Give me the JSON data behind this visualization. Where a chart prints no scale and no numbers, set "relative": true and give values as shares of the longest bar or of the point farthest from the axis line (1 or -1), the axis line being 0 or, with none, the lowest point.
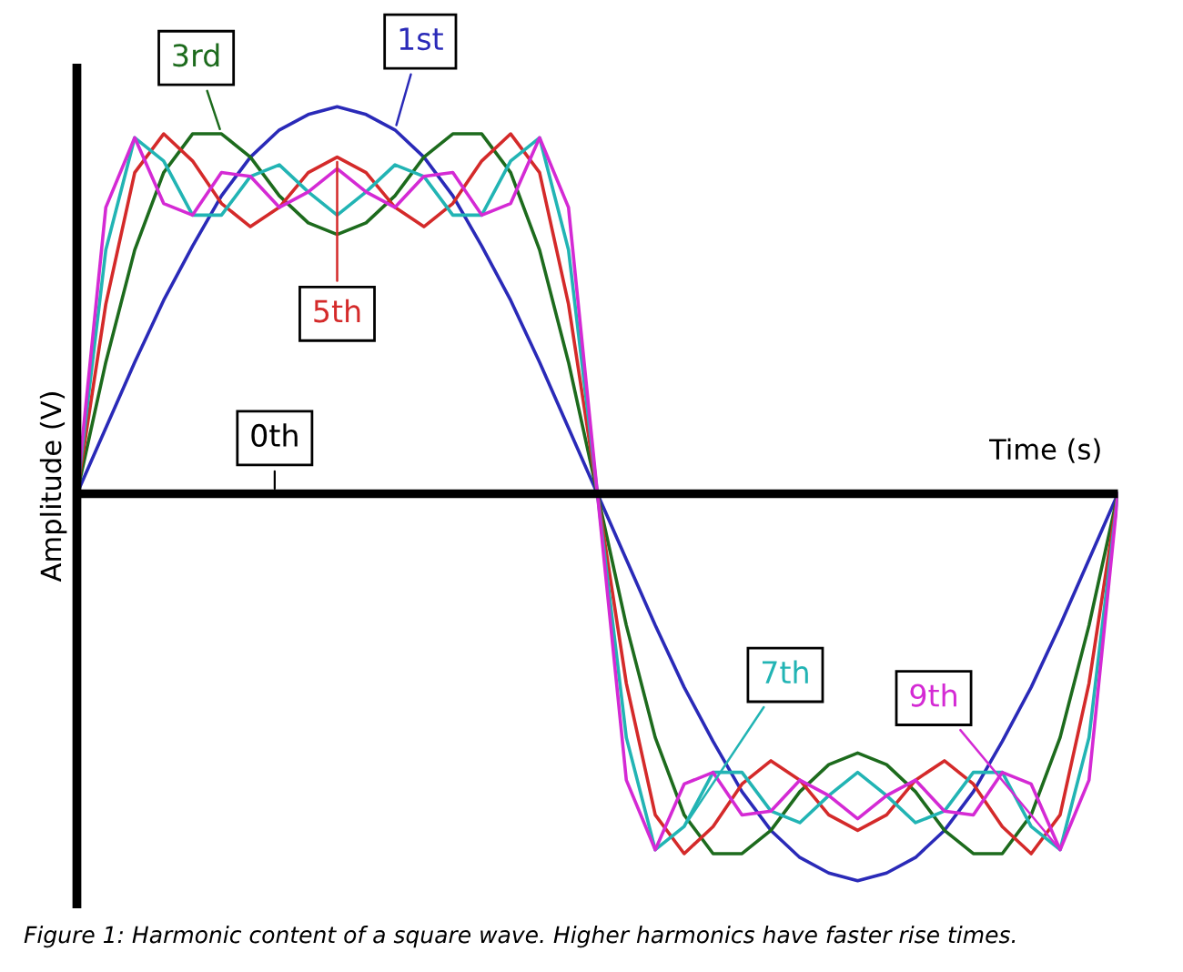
{
  "chart_data": {
    "type": "line",
    "relative": true,
    "xlabel": "Time (s)",
    "ylabel": "Amplitude (V)",
    "ref_lines": [
      {
        "axis": "y",
        "value": 0,
        "label": "0th",
        "color": "#000000"
      }
    ],
    "marker": "none",
    "line_style": "solid",
    "categories": [
      null,
      null,
      null,
      null,
      null,
      null,
      null,
      null,
      null,
      null,
      null,
      null,
      null,
      null,
      null,
      null,
      null,
      null,
      null,
      null,
      null,
      null,
      null,
      null,
      null,
      null,
      null,
      null,
      null,
      null,
      null,
      null,
      null,
      null,
      null,
      null,
      null
    ],
    "series": [
      {
        "name": "1st",
        "color": "#2a2ab8",
        "values": [
          0,
          0.17,
          0.34,
          0.5,
          0.64,
          0.77,
          0.87,
          0.94,
          0.98,
          1,
          0.98,
          0.94,
          0.87,
          0.77,
          0.64,
          0.5,
          0.34,
          0.17,
          0,
          -0.17,
          -0.34,
          -0.5,
          -0.64,
          -0.77,
          -0.87,
          -0.94,
          -0.98,
          -1,
          -0.98,
          -0.94,
          -0.87,
          -0.77,
          -0.64,
          -0.5,
          -0.34,
          -0.17,
          0
        ]
      },
      {
        "name": "3rd",
        "color": "#1d6b1d",
        "values": [
          0,
          0.34,
          0.63,
          0.83,
          0.93,
          0.93,
          0.87,
          0.77,
          0.7,
          0.67,
          0.7,
          0.77,
          0.87,
          0.93,
          0.93,
          0.83,
          0.63,
          0.34,
          0,
          -0.34,
          -0.63,
          -0.83,
          -0.93,
          -0.93,
          -0.87,
          -0.77,
          -0.7,
          -0.67,
          -0.7,
          -0.77,
          -0.87,
          -0.93,
          -0.93,
          -0.83,
          -0.63,
          -0.34,
          0
        ]
      },
      {
        "name": "5th",
        "color": "#d42a2a",
        "values": [
          0,
          0.49,
          0.83,
          0.93,
          0.86,
          0.75,
          0.69,
          0.74,
          0.83,
          0.87,
          0.83,
          0.74,
          0.69,
          0.75,
          0.86,
          0.93,
          0.83,
          0.49,
          0,
          -0.49,
          -0.83,
          -0.93,
          -0.86,
          -0.75,
          -0.69,
          -0.74,
          -0.83,
          -0.87,
          -0.83,
          -0.74,
          -0.69,
          -0.75,
          -0.86,
          -0.93,
          -0.83,
          -0.49,
          0
        ]
      },
      {
        "name": "7th",
        "color": "#22b4b4",
        "values": [
          0,
          0.63,
          0.92,
          0.86,
          0.72,
          0.72,
          0.82,
          0.85,
          0.78,
          0.72,
          0.78,
          0.85,
          0.82,
          0.72,
          0.72,
          0.86,
          0.92,
          0.63,
          0,
          -0.63,
          -0.92,
          -0.86,
          -0.72,
          -0.72,
          -0.82,
          -0.85,
          -0.78,
          -0.72,
          -0.78,
          -0.85,
          -0.82,
          -0.72,
          -0.72,
          -0.86,
          -0.92,
          -0.63,
          0
        ]
      },
      {
        "name": "9th",
        "color": "#d42ad4",
        "values": [
          0,
          0.74,
          0.92,
          0.75,
          0.72,
          0.83,
          0.82,
          0.74,
          0.78,
          0.84,
          0.78,
          0.74,
          0.82,
          0.83,
          0.72,
          0.75,
          0.92,
          0.74,
          0,
          -0.74,
          -0.92,
          -0.75,
          -0.72,
          -0.83,
          -0.82,
          -0.74,
          -0.78,
          -0.84,
          -0.78,
          -0.74,
          -0.82,
          -0.83,
          -0.72,
          -0.75,
          -0.92,
          -0.74,
          0
        ]
      }
    ],
    "annotations": [
      "Figure 1: Harmonic content of a square wave. Higher harmonics have faster rise times."
    ]
  }
}
